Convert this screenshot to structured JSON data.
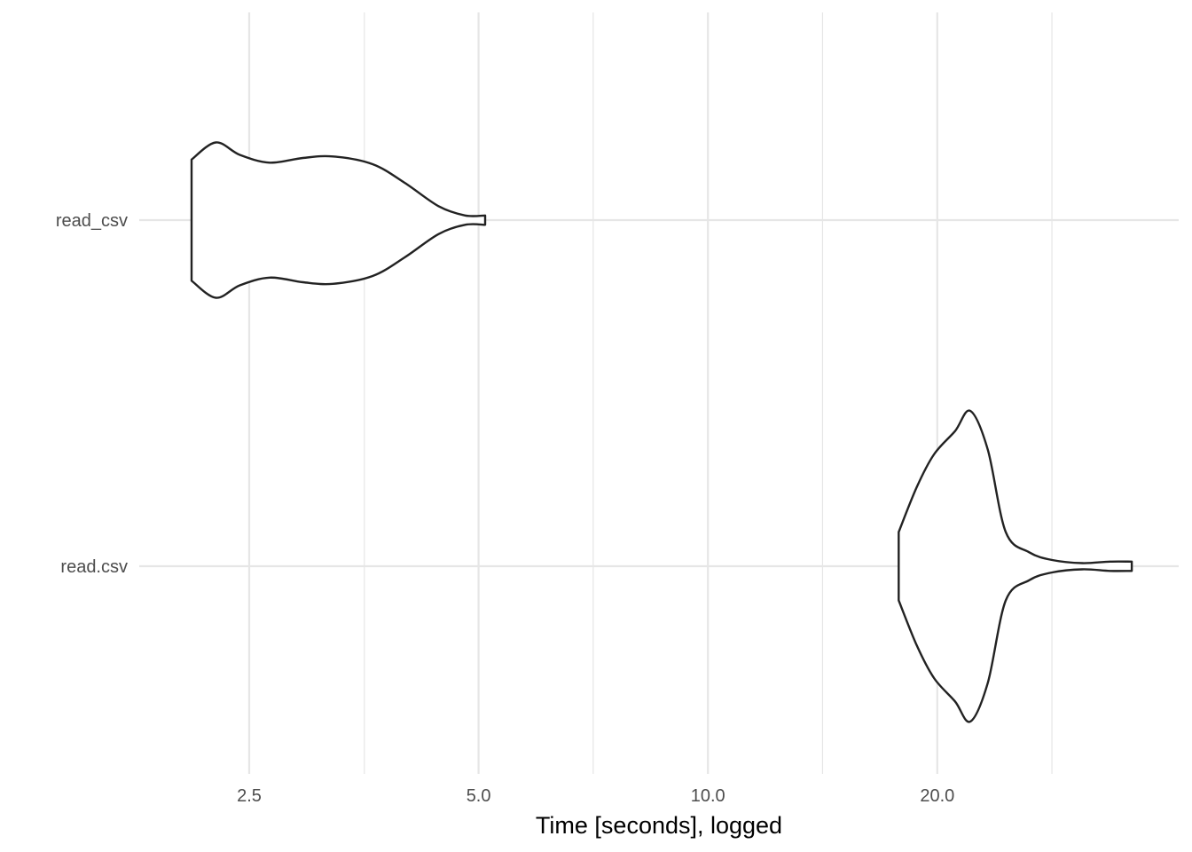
{
  "chart_data": {
    "type": "violin",
    "title": "",
    "xlabel": "Time [seconds], logged",
    "ylabel": "",
    "x_scale": "log2",
    "xlim": [
      1.9,
      36.5
    ],
    "x_ticks": [
      {
        "value": 2.5,
        "label": "2.5"
      },
      {
        "value": 5.0,
        "label": "5.0"
      },
      {
        "value": 10.0,
        "label": "10.0"
      },
      {
        "value": 20.0,
        "label": "20.0"
      }
    ],
    "x_minor_ticks": [
      3.54,
      7.07,
      14.14,
      28.28
    ],
    "grid": true,
    "legend": "none",
    "outline_color": "#222222",
    "grid_color": "#e6e6e6",
    "categories": [
      "read_csv",
      "read.csv"
    ],
    "violins": [
      {
        "category": "read_csv",
        "min": 2.1,
        "max": 5.1,
        "profile": [
          {
            "x": 2.1,
            "density": 0.39
          },
          {
            "x": 2.26,
            "density": 0.5
          },
          {
            "x": 2.43,
            "density": 0.42
          },
          {
            "x": 2.66,
            "density": 0.37
          },
          {
            "x": 2.94,
            "density": 0.4
          },
          {
            "x": 3.22,
            "density": 0.41
          },
          {
            "x": 3.63,
            "density": 0.36
          },
          {
            "x": 4.0,
            "density": 0.24
          },
          {
            "x": 4.43,
            "density": 0.09
          },
          {
            "x": 4.8,
            "density": 0.03
          },
          {
            "x": 5.1,
            "density": 0.03
          }
        ]
      },
      {
        "category": "read.csv",
        "min": 17.8,
        "max": 36.0,
        "profile": [
          {
            "x": 17.8,
            "density": 0.22
          },
          {
            "x": 18.8,
            "density": 0.51
          },
          {
            "x": 19.8,
            "density": 0.72
          },
          {
            "x": 21.1,
            "density": 0.87
          },
          {
            "x": 22.1,
            "density": 1.0
          },
          {
            "x": 23.3,
            "density": 0.75
          },
          {
            "x": 24.6,
            "density": 0.22
          },
          {
            "x": 26.4,
            "density": 0.09
          },
          {
            "x": 28.3,
            "density": 0.04
          },
          {
            "x": 31.0,
            "density": 0.02
          },
          {
            "x": 33.7,
            "density": 0.03
          },
          {
            "x": 36.0,
            "density": 0.03
          }
        ]
      }
    ]
  }
}
